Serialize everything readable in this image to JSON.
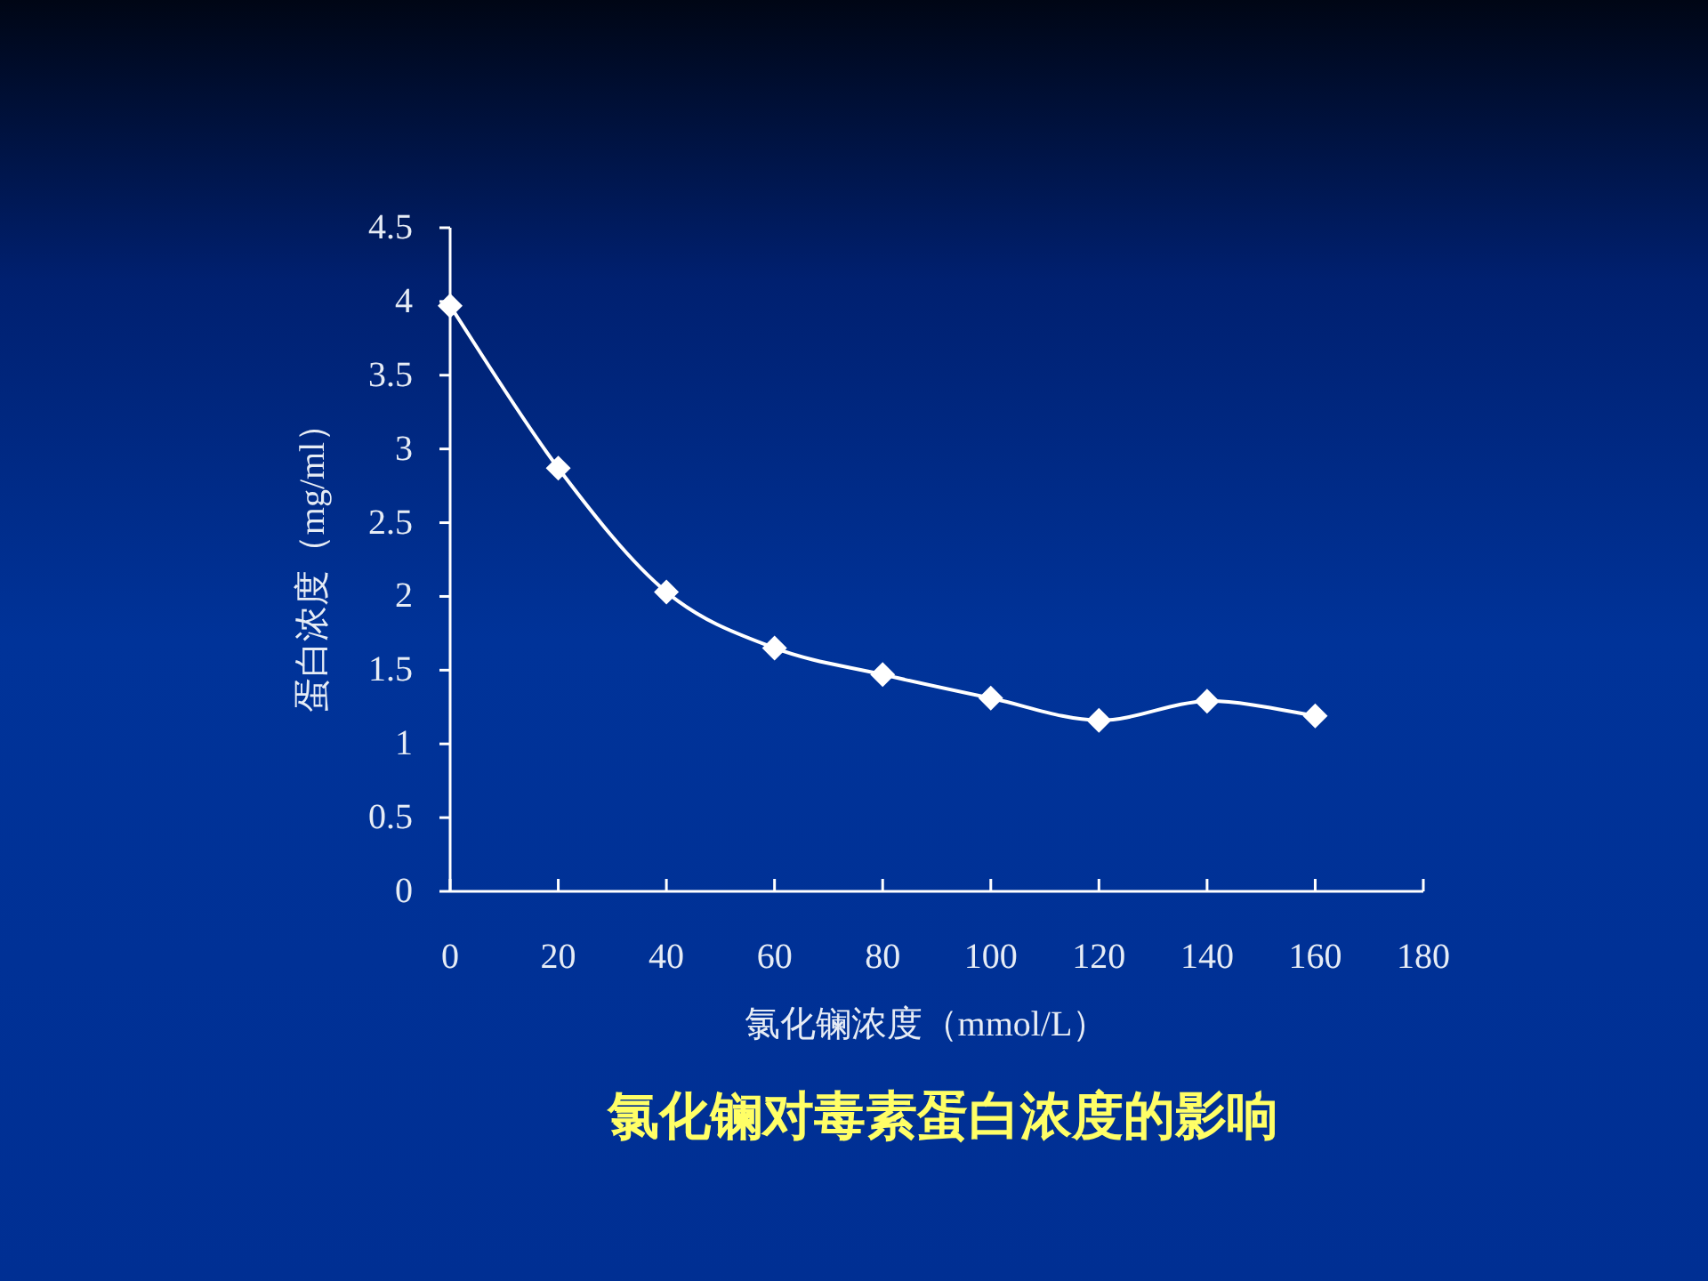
{
  "chart_data": {
    "type": "line",
    "title": "氯化镧对毒素蛋白浓度的影响",
    "xlabel": "氯化镧浓度（mmol/L）",
    "ylabel": "蛋白浓度（mg/ml）",
    "x": [
      0,
      20,
      40,
      60,
      80,
      100,
      120,
      140,
      160
    ],
    "series": [
      {
        "color": "#ffffff",
        "values": [
          3.97,
          2.87,
          2.03,
          1.65,
          1.47,
          1.31,
          1.16,
          1.29,
          1.19
        ]
      }
    ],
    "xlim": [
      0,
      180
    ],
    "xticks": [
      0,
      20,
      40,
      60,
      80,
      100,
      120,
      140,
      160,
      180
    ],
    "ylim": [
      0,
      4.5
    ],
    "yticks": [
      0,
      0.5,
      1,
      1.5,
      2,
      2.5,
      3,
      3.5,
      4,
      4.5
    ],
    "marker": "diamond",
    "line_style": "solid"
  }
}
